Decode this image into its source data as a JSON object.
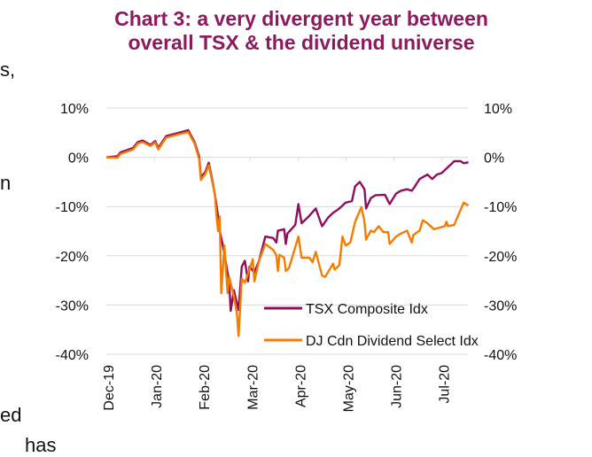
{
  "page_fragments": [
    "s,",
    "n",
    "ed",
    "has"
  ],
  "chart_data": {
    "type": "line",
    "title": "Chart 3: a very divergent year between overall TSX & the dividend universe",
    "xlabel": "",
    "ylabel": "",
    "x_tick_labels": [
      "Dec-19",
      "Jan-20",
      "Feb-20",
      "Mar-20",
      "Apr-20",
      "May-20",
      "Jun-20",
      "Jul-20"
    ],
    "y_tick_labels": [
      "10%",
      "0%",
      "-10%",
      "-20%",
      "-30%",
      "-40%"
    ],
    "y_ticks": [
      10,
      0,
      -10,
      -20,
      -30,
      -40
    ],
    "ylim": [
      -40,
      10
    ],
    "y_unit": "%",
    "secondary_y_axis": true,
    "grid": "horizontal",
    "legend_placement": "bottom-right",
    "series": [
      {
        "name": "TSX Composite Idx",
        "color": "#8e0f5e",
        "points": [
          [
            "2019-12-31",
            0
          ],
          [
            "2020-01-07",
            0.2
          ],
          [
            "2020-01-09",
            1.0
          ],
          [
            "2020-01-17",
            1.9
          ],
          [
            "2020-01-20",
            3.1
          ],
          [
            "2020-01-23",
            3.4
          ],
          [
            "2020-01-28",
            2.5
          ],
          [
            "2020-01-31",
            3.3
          ],
          [
            "2020-02-02",
            1.9
          ],
          [
            "2020-02-07",
            4.3
          ],
          [
            "2020-02-14",
            4.9
          ],
          [
            "2020-02-21",
            5.5
          ],
          [
            "2020-02-25",
            3.1
          ],
          [
            "2020-02-28",
            0.1
          ],
          [
            "2020-02-29",
            -4.1
          ],
          [
            "2020-03-03",
            -2.9
          ],
          [
            "2020-03-05",
            -1.1
          ],
          [
            "2020-03-07",
            -4.1
          ],
          [
            "2020-03-09",
            -7.7
          ],
          [
            "2020-03-11",
            -12.0
          ],
          [
            "2020-03-12",
            -14.9
          ],
          [
            "2020-03-14",
            -17.9
          ],
          [
            "2020-03-17",
            -23.4
          ],
          [
            "2020-03-18",
            -25.2
          ],
          [
            "2020-03-19",
            -31.2
          ],
          [
            "2020-03-21",
            -27.0
          ],
          [
            "2020-03-24",
            -31.0
          ],
          [
            "2020-03-26",
            -22.2
          ],
          [
            "2020-03-28",
            -21.0
          ],
          [
            "2020-03-30",
            -25.2
          ],
          [
            "2020-03-31",
            -22.2
          ],
          [
            "2020-04-03",
            -23.4
          ],
          [
            "2020-04-06",
            -21.0
          ],
          [
            "2020-04-10",
            -16.1
          ],
          [
            "2020-04-15",
            -16.4
          ],
          [
            "2020-04-17",
            -17.3
          ],
          [
            "2020-04-18",
            -14.9
          ],
          [
            "2020-04-22",
            -14.6
          ],
          [
            "2020-04-23",
            -17.6
          ],
          [
            "2020-04-24",
            -15.5
          ],
          [
            "2020-04-29",
            -13.7
          ],
          [
            "2020-05-01",
            -9.5
          ],
          [
            "2020-05-03",
            -13.4
          ],
          [
            "2020-05-07",
            -12.2
          ],
          [
            "2020-05-12",
            -10.4
          ],
          [
            "2020-05-16",
            -14.0
          ],
          [
            "2020-05-20",
            -12.2
          ],
          [
            "2020-05-23",
            -11.3
          ],
          [
            "2020-05-27",
            -10.4
          ],
          [
            "2020-05-31",
            -9.2
          ],
          [
            "2020-06-04",
            -8.9
          ],
          [
            "2020-06-06",
            -5.9
          ],
          [
            "2020-06-09",
            -5.0
          ],
          [
            "2020-06-12",
            -6.5
          ],
          [
            "2020-06-13",
            -10.4
          ],
          [
            "2020-06-16",
            -8.3
          ],
          [
            "2020-06-19",
            -7.7
          ],
          [
            "2020-06-25",
            -7.6
          ],
          [
            "2020-06-28",
            -9.5
          ],
          [
            "2020-07-02",
            -7.4
          ],
          [
            "2020-07-05",
            -6.8
          ],
          [
            "2020-07-09",
            -6.5
          ],
          [
            "2020-07-12",
            -6.8
          ],
          [
            "2020-07-14",
            -5.9
          ],
          [
            "2020-07-17",
            -4.4
          ],
          [
            "2020-07-22",
            -3.5
          ],
          [
            "2020-07-25",
            -4.4
          ],
          [
            "2020-07-28",
            -3.5
          ],
          [
            "2020-07-31",
            -3.2
          ],
          [
            "2020-08-03",
            -2.3
          ],
          [
            "2020-08-08",
            -0.8
          ],
          [
            "2020-08-12",
            -0.8
          ],
          [
            "2020-08-14",
            -1.2
          ],
          [
            "2020-08-17",
            -1.0
          ]
        ]
      },
      {
        "name": "DJ Cdn Dividend Select Idx",
        "color": "#f57c00",
        "points": [
          [
            "2019-12-31",
            0
          ],
          [
            "2020-01-07",
            -0.1
          ],
          [
            "2020-01-09",
            0.7
          ],
          [
            "2020-01-17",
            1.6
          ],
          [
            "2020-01-20",
            2.8
          ],
          [
            "2020-01-23",
            3.1
          ],
          [
            "2020-01-28",
            2.3
          ],
          [
            "2020-01-31",
            3.0
          ],
          [
            "2020-02-02",
            1.6
          ],
          [
            "2020-02-07",
            4.0
          ],
          [
            "2020-02-14",
            4.6
          ],
          [
            "2020-02-21",
            5.1
          ],
          [
            "2020-02-25",
            2.8
          ],
          [
            "2020-02-28",
            -0.4
          ],
          [
            "2020-02-29",
            -4.6
          ],
          [
            "2020-03-03",
            -3.3
          ],
          [
            "2020-03-05",
            -1.6
          ],
          [
            "2020-03-07",
            -4.5
          ],
          [
            "2020-03-09",
            -7.7
          ],
          [
            "2020-03-10",
            -12.0
          ],
          [
            "2020-03-11",
            -15.0
          ],
          [
            "2020-03-12",
            -12.0
          ],
          [
            "2020-03-13",
            -27.6
          ],
          [
            "2020-03-15",
            -17.9
          ],
          [
            "2020-03-17",
            -27.6
          ],
          [
            "2020-03-18",
            -24.3
          ],
          [
            "2020-03-21",
            -28.2
          ],
          [
            "2020-03-23",
            -31.8
          ],
          [
            "2020-03-24",
            -36.3
          ],
          [
            "2020-03-26",
            -24.6
          ],
          [
            "2020-03-28",
            -25.5
          ],
          [
            "2020-03-31",
            -22.8
          ],
          [
            "2020-04-02",
            -20.7
          ],
          [
            "2020-04-03",
            -25.2
          ],
          [
            "2020-04-06",
            -21.0
          ],
          [
            "2020-04-10",
            -17.6
          ],
          [
            "2020-04-15",
            -18.8
          ],
          [
            "2020-04-17",
            -19.9
          ],
          [
            "2020-04-18",
            -23.1
          ],
          [
            "2020-04-19",
            -19.8
          ],
          [
            "2020-04-22",
            -20.4
          ],
          [
            "2020-04-23",
            -23.1
          ],
          [
            "2020-04-25",
            -22.5
          ],
          [
            "2020-05-01",
            -16.1
          ],
          [
            "2020-05-03",
            -20.4
          ],
          [
            "2020-05-08",
            -20.4
          ],
          [
            "2020-05-10",
            -21.3
          ],
          [
            "2020-05-12",
            -19.2
          ],
          [
            "2020-05-16",
            -24.0
          ],
          [
            "2020-05-18",
            -24.3
          ],
          [
            "2020-05-23",
            -21.6
          ],
          [
            "2020-05-24",
            -22.8
          ],
          [
            "2020-05-27",
            -21.9
          ],
          [
            "2020-05-29",
            -16.1
          ],
          [
            "2020-05-31",
            -17.9
          ],
          [
            "2020-06-03",
            -17.3
          ],
          [
            "2020-06-06",
            -13.1
          ],
          [
            "2020-06-10",
            -10.1
          ],
          [
            "2020-06-12",
            -13.1
          ],
          [
            "2020-06-13",
            -16.7
          ],
          [
            "2020-06-16",
            -14.9
          ],
          [
            "2020-06-18",
            -15.2
          ],
          [
            "2020-06-21",
            -14.0
          ],
          [
            "2020-06-24",
            -15.2
          ],
          [
            "2020-06-27",
            -15.2
          ],
          [
            "2020-06-28",
            -17.6
          ],
          [
            "2020-07-02",
            -16.1
          ],
          [
            "2020-07-05",
            -15.5
          ],
          [
            "2020-07-09",
            -14.9
          ],
          [
            "2020-07-12",
            -17.3
          ],
          [
            "2020-07-13",
            -15.8
          ],
          [
            "2020-07-17",
            -14.9
          ],
          [
            "2020-07-19",
            -12.8
          ],
          [
            "2020-07-22",
            -13.4
          ],
          [
            "2020-07-26",
            -14.6
          ],
          [
            "2020-08-02",
            -14.0
          ],
          [
            "2020-08-03",
            -13.1
          ],
          [
            "2020-08-04",
            -14.0
          ],
          [
            "2020-08-08",
            -13.7
          ],
          [
            "2020-08-10",
            -12.2
          ],
          [
            "2020-08-14",
            -9.2
          ],
          [
            "2020-08-17",
            -9.8
          ]
        ]
      }
    ]
  }
}
